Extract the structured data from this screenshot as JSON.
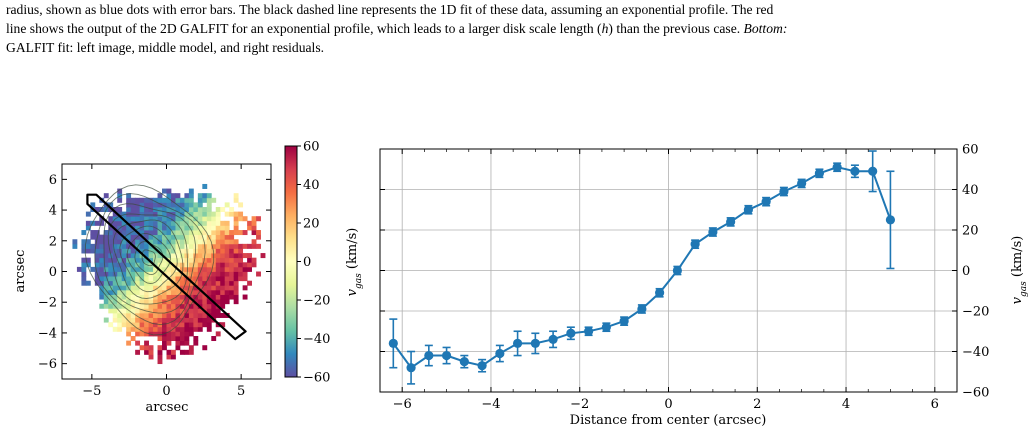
{
  "caption": {
    "line1": "radius, shown as blue dots with error bars. The black dashed line represents the 1D fit of these data, assuming an exponential profile. The red",
    "line2_pre": "line shows the output of the 2D GALFIT for an exponential profile, which leads to a larger disk scale length (",
    "line2_h": "h",
    "line2_post": ") than the previous case.",
    "line2_bottom": "Bottom:",
    "line3": "GALFIT fit: left image, middle model, and right residuals."
  },
  "velocity_map": {
    "xlabel": "arcsec",
    "ylabel": "arcsec",
    "colorbar_label": "v_gas (km/s)",
    "colorbar_ticks": [
      "60",
      "40",
      "20",
      "0",
      "−20",
      "−40",
      "−60"
    ],
    "colorbar_range": [
      -60,
      60
    ],
    "x_ticks": [
      "−5",
      "0",
      "5"
    ],
    "y_ticks": [
      "6",
      "4",
      "2",
      "0",
      "−2",
      "−4",
      "−6"
    ],
    "xlim": [
      -7,
      7
    ],
    "ylim": [
      -7,
      7
    ],
    "colormap": [
      "#5e4fa2",
      "#3288bd",
      "#66c2a5",
      "#abdda4",
      "#e6f598",
      "#ffffbf",
      "#fee08b",
      "#fdae61",
      "#f46d43",
      "#d53e4f",
      "#9e0142"
    ],
    "slit_color": "#000000"
  },
  "chart_data": {
    "type": "line",
    "xlabel": "Distance from center (arcsec)",
    "ylabel": "v_gas (km/s)",
    "xlim": [
      -6.5,
      6.5
    ],
    "ylim": [
      -60,
      60
    ],
    "x_ticks": [
      "−6",
      "−4",
      "−2",
      "0",
      "2",
      "4",
      "6"
    ],
    "y_ticks": [
      "60",
      "40",
      "20",
      "0",
      "−20",
      "−40",
      "−60"
    ],
    "grid": true,
    "color": "#1f77b4",
    "x": [
      -6.2,
      -5.8,
      -5.4,
      -5.0,
      -4.6,
      -4.2,
      -3.8,
      -3.4,
      -3.0,
      -2.6,
      -2.2,
      -1.8,
      -1.4,
      -1.0,
      -0.6,
      -0.2,
      0.2,
      0.6,
      1.0,
      1.4,
      1.8,
      2.2,
      2.6,
      3.0,
      3.4,
      3.8,
      4.2,
      4.6,
      5.0
    ],
    "y": [
      -36,
      -48,
      -42,
      -42,
      -45,
      -47,
      -41,
      -36,
      -36,
      -34,
      -31,
      -30,
      -28,
      -25,
      -19,
      -11,
      0,
      13,
      19,
      24,
      30,
      34,
      39,
      43,
      48,
      51,
      49,
      49,
      25
    ],
    "yerr": [
      12,
      8,
      5,
      4,
      3,
      3,
      4,
      6,
      5,
      4,
      3,
      2,
      2,
      2,
      2,
      2,
      2,
      2,
      2,
      2,
      2,
      2,
      2,
      2,
      2,
      2,
      3,
      10,
      24
    ]
  }
}
